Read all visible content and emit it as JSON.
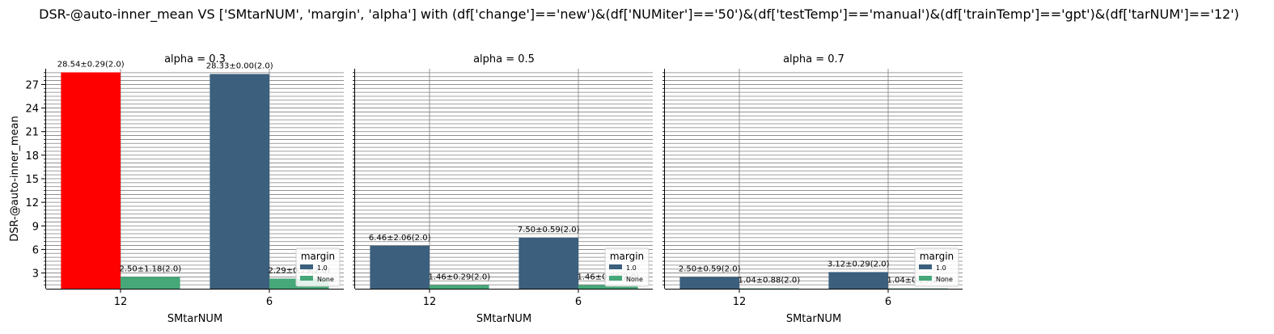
{
  "title": "DSR-@auto-inner_mean VS ['SMtarNUM', 'margin', 'alpha'] with (df['change']=='new')&(df['NUMiter']=='50')&(df['testTemp']=='manual')&(df['trainTemp']=='gpt')&(df['tarNUM']=='12')",
  "colors": {
    "series_1_0": "#3b5f7d",
    "series_none": "#46a779",
    "highlight": "#ff0000",
    "grid": "#808080"
  },
  "chart_data": [
    {
      "type": "bar",
      "title": "alpha = 0.3",
      "xlabel": "SMtarNUM",
      "ylabel": "DSR-@auto-inner_mean",
      "categories": [
        "12",
        "6"
      ],
      "ylim": [
        1,
        29
      ],
      "yticks": [
        "3",
        "6",
        "9",
        "12",
        "15",
        "18",
        "21",
        "24",
        "27"
      ],
      "grid": true,
      "legend": {
        "title": "margin",
        "entries": [
          "1.0",
          "None"
        ],
        "placement": "lower-right"
      },
      "highlight": {
        "series": 0,
        "category": 0
      },
      "series": [
        {
          "name": "1.0",
          "values": [
            28.54,
            28.33
          ],
          "labels": [
            "28.54±0.29(2.0)",
            "28.33±0.00(2.0)"
          ]
        },
        {
          "name": "None",
          "values": [
            2.5,
            2.29
          ],
          "labels": [
            "2.50±1.18(2.0)",
            "2.29±0.29(2.0)"
          ]
        }
      ]
    },
    {
      "type": "bar",
      "title": "alpha = 0.5",
      "xlabel": "SMtarNUM",
      "ylabel": "",
      "categories": [
        "12",
        "6"
      ],
      "ylim": [
        1,
        29
      ],
      "yticks": [],
      "grid": true,
      "legend": {
        "title": "margin",
        "entries": [
          "1.0",
          "None"
        ],
        "placement": "lower-right"
      },
      "series": [
        {
          "name": "1.0",
          "values": [
            6.46,
            7.5
          ],
          "labels": [
            "6.46±2.06(2.0)",
            "7.50±0.59(2.0)"
          ]
        },
        {
          "name": "None",
          "values": [
            1.46,
            1.46
          ],
          "labels": [
            "1.46±0.29(2.0)",
            "1.46±0.29(2.0)"
          ]
        }
      ]
    },
    {
      "type": "bar",
      "title": "alpha = 0.7",
      "xlabel": "SMtarNUM",
      "ylabel": "",
      "categories": [
        "12",
        "6"
      ],
      "ylim": [
        1,
        29
      ],
      "yticks": [],
      "grid": true,
      "legend": {
        "title": "margin",
        "entries": [
          "1.0",
          "None"
        ],
        "placement": "lower-right"
      },
      "series": [
        {
          "name": "1.0",
          "values": [
            2.5,
            3.12
          ],
          "labels": [
            "2.50±0.59(2.0)",
            "3.12±0.29(2.0)"
          ]
        },
        {
          "name": "None",
          "values": [
            1.04,
            1.04
          ],
          "labels": [
            "1.04±0.88(2.0)",
            "1.04±0.29(2.0)"
          ]
        }
      ]
    }
  ]
}
